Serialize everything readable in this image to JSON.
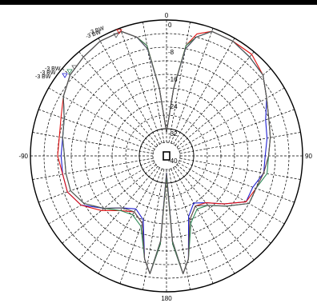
{
  "colors": {
    "background": "#ffffff",
    "grid": "#000000",
    "top_bar": "#000000"
  },
  "chart_data": {
    "type": "line",
    "coordinate_system": "polar",
    "angle_direction": "clockwise, 0 at top",
    "radial_axis": {
      "ticks": [
        0,
        -8,
        -16,
        -24,
        -32,
        -40
      ],
      "tick_labels": [
        "0",
        "-8",
        "-16",
        "-24",
        "-32",
        "-40"
      ],
      "range": [
        -40,
        0
      ],
      "label_angle": 0
    },
    "angle_labels": [
      {
        "angle": 0,
        "text": "0"
      },
      {
        "angle": 90,
        "text": "90"
      },
      {
        "angle": 180,
        "text": "180"
      },
      {
        "angle": -90,
        "text": "-90"
      }
    ],
    "grid": true,
    "angular_grid_step": 10,
    "bandwidth_labels": [
      "-3 BW",
      "-3 BW",
      "-3 BW",
      "-3 BW",
      "-3 BW"
    ],
    "series": [
      {
        "color": "#1f1fd0",
        "points": [
          [
            0,
            -33
          ],
          [
            -6,
            -20
          ],
          [
            -10,
            -8
          ],
          [
            -14,
            -4
          ],
          [
            -20,
            -1
          ],
          [
            -30,
            -1
          ],
          [
            -40,
            -2
          ],
          [
            -50,
            -3
          ],
          [
            -60,
            -5
          ],
          [
            -70,
            -8
          ],
          [
            -80,
            -9
          ],
          [
            -90,
            -9
          ],
          [
            -100,
            -9
          ],
          [
            -110,
            -9
          ],
          [
            -120,
            -11
          ],
          [
            -130,
            -16
          ],
          [
            -140,
            -20
          ],
          [
            -150,
            -22
          ],
          [
            -160,
            -20
          ],
          [
            -168,
            -9
          ],
          [
            -172,
            -5
          ],
          [
            -176,
            -14
          ],
          [
            180,
            -35
          ],
          [
            176,
            -14
          ],
          [
            172,
            -5
          ],
          [
            168,
            -9
          ],
          [
            160,
            -21
          ],
          [
            150,
            -24
          ],
          [
            140,
            -22
          ],
          [
            130,
            -18
          ],
          [
            120,
            -13
          ],
          [
            110,
            -13
          ],
          [
            100,
            -11
          ],
          [
            90,
            -11
          ],
          [
            80,
            -10
          ],
          [
            70,
            -9
          ],
          [
            60,
            -6
          ],
          [
            50,
            -3
          ],
          [
            40,
            -2
          ],
          [
            30,
            -1
          ],
          [
            20,
            -1
          ],
          [
            14,
            -4
          ],
          [
            10,
            -8
          ],
          [
            6,
            -20
          ],
          [
            0,
            -33
          ]
        ]
      },
      {
        "color": "#e01010",
        "points": [
          [
            0,
            -33
          ],
          [
            -6,
            -20
          ],
          [
            -10,
            -7
          ],
          [
            -14,
            -4
          ],
          [
            -20,
            -1
          ],
          [
            -30,
            -1
          ],
          [
            -40,
            -2
          ],
          [
            -50,
            -3
          ],
          [
            -60,
            -5
          ],
          [
            -70,
            -7
          ],
          [
            -80,
            -8
          ],
          [
            -90,
            -8
          ],
          [
            -100,
            -9
          ],
          [
            -110,
            -9
          ],
          [
            -120,
            -11
          ],
          [
            -130,
            -15
          ],
          [
            -140,
            -19
          ],
          [
            -150,
            -21
          ],
          [
            -160,
            -19
          ],
          [
            -168,
            -9
          ],
          [
            -172,
            -5
          ],
          [
            -176,
            -14
          ],
          [
            180,
            -34
          ],
          [
            176,
            -14
          ],
          [
            172,
            -5
          ],
          [
            168,
            -9
          ],
          [
            160,
            -20
          ],
          [
            150,
            -23
          ],
          [
            140,
            -22
          ],
          [
            130,
            -18
          ],
          [
            120,
            -13
          ],
          [
            110,
            -12
          ],
          [
            100,
            -11
          ],
          [
            90,
            -10
          ],
          [
            80,
            -9
          ],
          [
            70,
            -8
          ],
          [
            60,
            -6
          ],
          [
            50,
            -3
          ],
          [
            40,
            -1
          ],
          [
            30,
            -1
          ],
          [
            20,
            -1
          ],
          [
            14,
            -3
          ],
          [
            10,
            -7
          ],
          [
            6,
            -20
          ],
          [
            0,
            -33
          ]
        ]
      },
      {
        "color": "#2e8a57",
        "points": [
          [
            0,
            -33
          ],
          [
            -6,
            -20
          ],
          [
            -10,
            -7
          ],
          [
            -14,
            -4
          ],
          [
            -20,
            -1
          ],
          [
            -30,
            -1
          ],
          [
            -40,
            -2
          ],
          [
            -50,
            -3
          ],
          [
            -60,
            -5
          ],
          [
            -70,
            -8
          ],
          [
            -80,
            -9
          ],
          [
            -90,
            -10
          ],
          [
            -100,
            -10
          ],
          [
            -110,
            -10
          ],
          [
            -120,
            -12
          ],
          [
            -130,
            -16
          ],
          [
            -140,
            -19
          ],
          [
            -150,
            -20
          ],
          [
            -160,
            -18
          ],
          [
            -168,
            -9
          ],
          [
            -172,
            -5
          ],
          [
            -176,
            -14
          ],
          [
            180,
            -34
          ],
          [
            176,
            -14
          ],
          [
            172,
            -5
          ],
          [
            168,
            -9
          ],
          [
            160,
            -19
          ],
          [
            150,
            -22
          ],
          [
            140,
            -21
          ],
          [
            130,
            -17
          ],
          [
            120,
            -12
          ],
          [
            110,
            -12
          ],
          [
            100,
            -10
          ],
          [
            90,
            -10
          ],
          [
            80,
            -9
          ],
          [
            70,
            -8
          ],
          [
            60,
            -6
          ],
          [
            50,
            -3
          ],
          [
            40,
            -2
          ],
          [
            30,
            -1
          ],
          [
            20,
            -1
          ],
          [
            14,
            -4
          ],
          [
            10,
            -7
          ],
          [
            6,
            -20
          ],
          [
            0,
            -33
          ]
        ]
      },
      {
        "color": "#555555",
        "points": [
          [
            0,
            -33
          ],
          [
            -6,
            -20
          ],
          [
            -10,
            -8
          ],
          [
            -14,
            -4
          ],
          [
            -20,
            -1
          ],
          [
            -30,
            -1
          ],
          [
            -40,
            -2
          ],
          [
            -50,
            -3
          ],
          [
            -60,
            -5
          ],
          [
            -70,
            -8
          ],
          [
            -80,
            -9
          ],
          [
            -90,
            -10
          ],
          [
            -100,
            -10
          ],
          [
            -110,
            -10
          ],
          [
            -120,
            -12
          ],
          [
            -130,
            -16
          ],
          [
            -140,
            -20
          ],
          [
            -150,
            -21
          ],
          [
            -160,
            -19
          ],
          [
            -168,
            -9
          ],
          [
            -172,
            -5
          ],
          [
            -176,
            -15
          ],
          [
            180,
            -35
          ],
          [
            176,
            -15
          ],
          [
            172,
            -5
          ],
          [
            168,
            -9
          ],
          [
            160,
            -20
          ],
          [
            150,
            -23
          ],
          [
            140,
            -21
          ],
          [
            130,
            -17
          ],
          [
            120,
            -12
          ],
          [
            110,
            -12
          ],
          [
            100,
            -11
          ],
          [
            90,
            -10
          ],
          [
            80,
            -9
          ],
          [
            70,
            -8
          ],
          [
            60,
            -6
          ],
          [
            50,
            -3
          ],
          [
            40,
            -2
          ],
          [
            30,
            -1
          ],
          [
            20,
            -1
          ],
          [
            14,
            -4
          ],
          [
            10,
            -8
          ],
          [
            6,
            -20
          ],
          [
            0,
            -33
          ]
        ]
      }
    ]
  }
}
